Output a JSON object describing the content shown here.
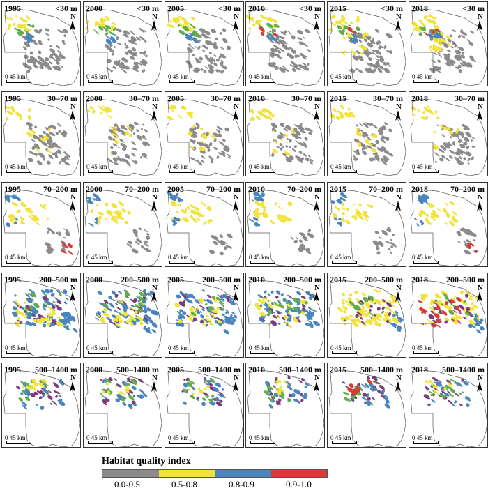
{
  "years": [
    "1995",
    "2000",
    "2005",
    "2010",
    "2015",
    "2018"
  ],
  "elevation_bands": [
    "<30 m",
    "30–70 m",
    "70–200 m",
    "200–500 m",
    "500–1400 m"
  ],
  "north_label": "N",
  "scale_label": "0  45 km",
  "legend": {
    "title": "Habitat quality index",
    "classes": [
      {
        "label": "0.0-0.5",
        "color": "#8c8a8a"
      },
      {
        "label": "0.5-0.8",
        "color": "#f2e23c"
      },
      {
        "label": "0.8-0.9",
        "color": "#4a86bd"
      },
      {
        "label": "0.9-1.0",
        "color": "#d93a35"
      }
    ]
  },
  "colors": {
    "low": "#8c8a8a",
    "mid": "#f2e23c",
    "high": "#4a86bd",
    "top": "#d93a35",
    "green": "#5fae4a",
    "purple": "#7b3b7e"
  }
}
